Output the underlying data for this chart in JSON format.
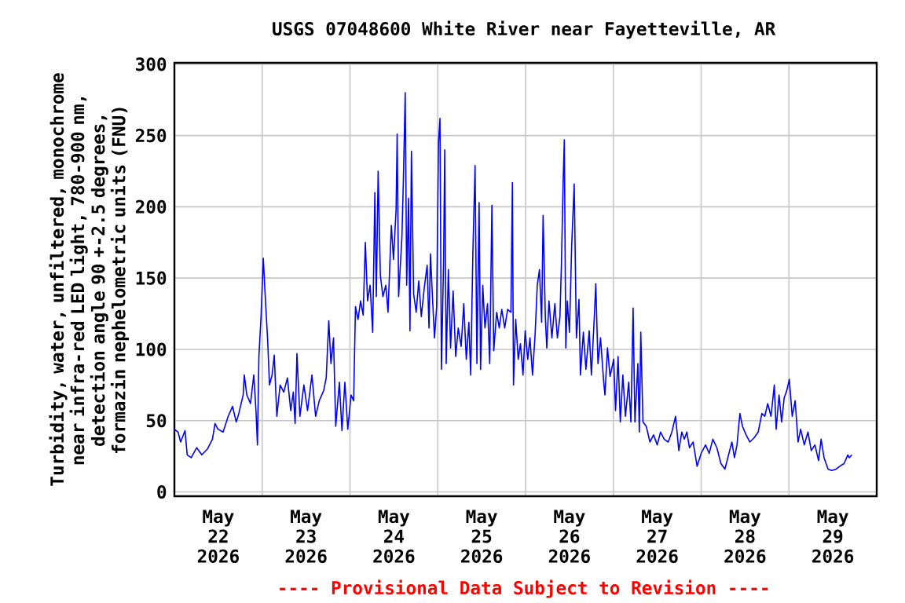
{
  "chart_data": {
    "type": "line",
    "title": "USGS 07048600 White River near Fayetteville, AR",
    "ylabel": "Turbidity, water, unfiltered, monochrome near infra-red LED light, 780-900 nm, detection angle 90 +-2.5 degrees, formazin nephelometric units (FNU)",
    "annotations": [
      "---- Provisional Data Subject to Revision ----"
    ],
    "xlim": [
      "2026-05-22T00:00",
      "2026-05-30T00:00"
    ],
    "xticks": [
      {
        "value": "2026-05-22T12:00",
        "label": "May 22 2026"
      },
      {
        "value": "2026-05-23T12:00",
        "label": "May 23 2026"
      },
      {
        "value": "2026-05-24T12:00",
        "label": "May 24 2026"
      },
      {
        "value": "2026-05-25T12:00",
        "label": "May 25 2026"
      },
      {
        "value": "2026-05-26T12:00",
        "label": "May 26 2026"
      },
      {
        "value": "2026-05-27T12:00",
        "label": "May 27 2026"
      },
      {
        "value": "2026-05-28T12:00",
        "label": "May 28 2026"
      },
      {
        "value": "2026-05-29T12:00",
        "label": "May 29 2026"
      },
      {
        "value": "2026-05-23T00:00",
        "label": null
      },
      {
        "value": "2026-05-24T00:00",
        "label": null
      },
      {
        "value": "2026-05-25T00:00",
        "label": null
      },
      {
        "value": "2026-05-26T00:00",
        "label": null
      },
      {
        "value": "2026-05-27T00:00",
        "label": null
      },
      {
        "value": "2026-05-28T00:00",
        "label": null
      },
      {
        "value": "2026-05-29T00:00",
        "label": null
      }
    ],
    "ylim": [
      -3,
      301
    ],
    "yticks": [
      0,
      50,
      100,
      150,
      200,
      250,
      300
    ],
    "grid": true,
    "line_style": "solid",
    "series": [
      {
        "color": "#0000ff",
        "x": [
          "2026-05-22T00:00",
          "2026-05-22T01:00",
          "2026-05-22T01:42",
          "2026-05-22T02:54",
          "2026-05-22T03:30",
          "2026-05-22T04:36",
          "2026-05-22T06:06",
          "2026-05-22T07:30",
          "2026-05-22T09:00",
          "2026-05-22T10:24",
          "2026-05-22T11:06",
          "2026-05-22T11:54",
          "2026-05-22T13:18",
          "2026-05-22T14:42",
          "2026-05-22T15:54",
          "2026-05-22T16:54",
          "2026-05-22T17:36",
          "2026-05-22T18:48",
          "2026-05-22T19:06",
          "2026-05-22T19:48",
          "2026-05-22T20:48",
          "2026-05-22T21:42",
          "2026-05-22T22:18",
          "2026-05-22T22:42",
          "2026-05-22T23:06",
          "2026-05-22T23:42",
          "2026-05-23T00:18",
          "2026-05-23T00:54",
          "2026-05-23T01:30",
          "2026-05-23T02:00",
          "2026-05-23T02:42",
          "2026-05-23T03:18",
          "2026-05-23T04:00",
          "2026-05-23T04:54",
          "2026-05-23T05:54",
          "2026-05-23T06:54",
          "2026-05-23T07:48",
          "2026-05-23T08:30",
          "2026-05-23T09:00",
          "2026-05-23T09:30",
          "2026-05-23T10:18",
          "2026-05-23T11:24",
          "2026-05-23T12:24",
          "2026-05-23T13:36",
          "2026-05-23T14:36",
          "2026-05-23T15:36",
          "2026-05-23T16:48",
          "2026-05-23T17:30",
          "2026-05-23T18:12",
          "2026-05-23T18:48",
          "2026-05-23T19:30",
          "2026-05-23T20:06",
          "2026-05-23T21:06",
          "2026-05-23T21:48",
          "2026-05-23T22:36",
          "2026-05-23T23:24",
          "2026-05-24T00:18",
          "2026-05-24T01:00",
          "2026-05-24T01:30",
          "2026-05-24T02:12",
          "2026-05-24T02:54",
          "2026-05-24T03:36",
          "2026-05-24T04:12",
          "2026-05-24T04:48",
          "2026-05-24T05:30",
          "2026-05-24T06:12",
          "2026-05-24T06:48",
          "2026-05-24T07:12",
          "2026-05-24T07:42",
          "2026-05-24T08:18",
          "2026-05-24T09:00",
          "2026-05-24T09:48",
          "2026-05-24T10:24",
          "2026-05-24T11:18",
          "2026-05-24T11:54",
          "2026-05-24T12:36",
          "2026-05-24T12:54",
          "2026-05-24T13:18",
          "2026-05-24T14:12",
          "2026-05-24T14:36",
          "2026-05-24T15:06",
          "2026-05-24T15:30",
          "2026-05-24T16:00",
          "2026-05-24T16:24",
          "2026-05-24T16:48",
          "2026-05-24T17:24",
          "2026-05-24T18:06",
          "2026-05-24T18:48",
          "2026-05-24T19:30",
          "2026-05-24T20:18",
          "2026-05-24T21:06",
          "2026-05-24T21:36",
          "2026-05-24T22:00",
          "2026-05-24T22:36",
          "2026-05-24T23:06",
          "2026-05-24T23:42",
          "2026-05-25T00:12",
          "2026-05-25T00:36",
          "2026-05-25T01:00",
          "2026-05-25T01:36",
          "2026-05-25T01:54",
          "2026-05-25T02:18",
          "2026-05-25T02:54",
          "2026-05-25T03:30",
          "2026-05-25T04:12",
          "2026-05-25T04:54",
          "2026-05-25T05:36",
          "2026-05-25T06:24",
          "2026-05-25T07:06",
          "2026-05-25T07:48",
          "2026-05-25T08:30",
          "2026-05-25T09:00",
          "2026-05-25T09:36",
          "2026-05-25T10:12",
          "2026-05-25T10:42",
          "2026-05-25T11:18",
          "2026-05-25T11:42",
          "2026-05-25T12:18",
          "2026-05-25T12:54",
          "2026-05-25T13:36",
          "2026-05-25T14:12",
          "2026-05-25T14:48",
          "2026-05-25T15:18",
          "2026-05-25T16:06",
          "2026-05-25T16:48",
          "2026-05-25T17:30",
          "2026-05-25T18:18",
          "2026-05-25T19:06",
          "2026-05-25T20:00",
          "2026-05-25T20:24",
          "2026-05-25T20:42",
          "2026-05-25T21:18",
          "2026-05-25T22:00",
          "2026-05-25T22:36",
          "2026-05-25T23:18",
          "2026-05-25T23:54",
          "2026-05-26T00:36",
          "2026-05-26T01:12",
          "2026-05-26T01:54",
          "2026-05-26T02:36",
          "2026-05-26T03:12",
          "2026-05-26T03:48",
          "2026-05-26T04:24",
          "2026-05-26T04:48",
          "2026-05-26T05:24",
          "2026-05-26T05:48",
          "2026-05-26T06:24",
          "2026-05-26T07:12",
          "2026-05-26T08:00",
          "2026-05-26T08:42",
          "2026-05-26T09:24",
          "2026-05-26T09:48",
          "2026-05-26T10:18",
          "2026-05-26T10:36",
          "2026-05-26T11:00",
          "2026-05-26T11:24",
          "2026-05-26T12:00",
          "2026-05-26T12:36",
          "2026-05-26T13:18",
          "2026-05-26T13:54",
          "2026-05-26T14:36",
          "2026-05-26T15:00",
          "2026-05-26T15:48",
          "2026-05-26T16:30",
          "2026-05-26T17:24",
          "2026-05-26T18:00",
          "2026-05-26T18:48",
          "2026-05-26T19:12",
          "2026-05-26T19:48",
          "2026-05-26T20:30",
          "2026-05-26T21:18",
          "2026-05-26T21:42",
          "2026-05-26T22:24",
          "2026-05-26T23:06",
          "2026-05-27T00:06",
          "2026-05-27T00:36",
          "2026-05-27T01:18",
          "2026-05-27T01:54",
          "2026-05-27T02:36",
          "2026-05-27T03:18",
          "2026-05-27T04:12",
          "2026-05-27T04:48",
          "2026-05-27T05:24",
          "2026-05-27T05:54",
          "2026-05-27T06:42",
          "2026-05-27T07:06",
          "2026-05-27T07:30",
          "2026-05-27T08:06",
          "2026-05-27T09:00",
          "2026-05-27T10:00",
          "2026-05-27T11:00",
          "2026-05-27T12:00",
          "2026-05-27T12:54",
          "2026-05-27T13:54",
          "2026-05-27T15:00",
          "2026-05-27T16:00",
          "2026-05-27T17:00",
          "2026-05-27T17:54",
          "2026-05-27T18:42",
          "2026-05-27T19:24",
          "2026-05-27T20:06",
          "2026-05-27T20:48",
          "2026-05-27T21:48",
          "2026-05-27T22:54",
          "2026-05-28T00:00",
          "2026-05-28T01:12",
          "2026-05-28T02:12",
          "2026-05-28T03:12",
          "2026-05-28T04:18",
          "2026-05-28T05:24",
          "2026-05-28T06:30",
          "2026-05-28T07:30",
          "2026-05-28T08:24",
          "2026-05-28T09:06",
          "2026-05-28T09:48",
          "2026-05-28T10:36",
          "2026-05-28T11:18",
          "2026-05-28T12:18",
          "2026-05-28T13:18",
          "2026-05-28T14:30",
          "2026-05-28T15:36",
          "2026-05-28T16:36",
          "2026-05-28T17:24",
          "2026-05-28T18:12",
          "2026-05-28T19:06",
          "2026-05-28T20:00",
          "2026-05-28T20:30",
          "2026-05-28T21:18",
          "2026-05-28T22:00",
          "2026-05-28T22:42",
          "2026-05-28T23:24",
          "2026-05-29T00:06",
          "2026-05-29T00:54",
          "2026-05-29T01:42",
          "2026-05-29T02:30",
          "2026-05-29T03:12",
          "2026-05-29T04:12",
          "2026-05-29T05:12",
          "2026-05-29T06:06",
          "2026-05-29T07:06",
          "2026-05-29T08:06",
          "2026-05-29T08:48",
          "2026-05-29T09:36",
          "2026-05-29T10:42",
          "2026-05-29T11:42",
          "2026-05-29T12:54",
          "2026-05-29T13:54",
          "2026-05-29T15:06",
          "2026-05-29T16:06",
          "2026-05-29T16:30",
          "2026-05-29T17:12"
        ],
        "values": [
          44,
          42,
          35,
          43,
          26,
          24,
          31,
          26,
          30,
          37,
          48,
          44,
          42,
          53,
          60,
          49,
          55,
          68,
          82,
          68,
          62,
          82,
          57,
          33,
          95,
          124,
          164,
          134,
          106,
          75,
          82,
          96,
          53,
          75,
          70,
          80,
          57,
          70,
          48,
          97,
          53,
          75,
          57,
          82,
          53,
          64,
          71,
          80,
          120,
          90,
          108,
          46,
          77,
          43,
          77,
          44,
          68,
          64,
          130,
          121,
          134,
          124,
          175,
          134,
          145,
          112,
          210,
          137,
          225,
          152,
          137,
          145,
          126,
          187,
          163,
          198,
          251,
          137,
          179,
          219,
          280,
          145,
          206,
          113,
          239,
          139,
          126,
          148,
          123,
          143,
          159,
          115,
          167,
          134,
          108,
          130,
          245,
          262,
          86,
          163,
          240,
          90,
          156,
          101,
          141,
          95,
          115,
          102,
          132,
          93,
          119,
          82,
          168,
          229,
          90,
          203,
          86,
          145,
          115,
          132,
          90,
          201,
          99,
          126,
          115,
          128,
          115,
          128,
          126,
          217,
          75,
          121,
          93,
          104,
          82,
          113,
          93,
          108,
          82,
          110,
          145,
          156,
          119,
          194,
          123,
          101,
          134,
          108,
          132,
          108,
          123,
          159,
          220,
          247,
          101,
          134,
          112,
          172,
          216,
          108,
          135,
          82,
          112,
          86,
          113,
          82,
          123,
          146,
          90,
          108,
          79,
          68,
          101,
          81,
          93,
          57,
          95,
          49,
          82,
          53,
          77,
          49,
          129,
          49,
          90,
          42,
          112,
          49,
          46,
          35,
          40,
          33,
          42,
          37,
          35,
          42,
          53,
          29,
          42,
          37,
          42,
          31,
          35,
          18,
          27,
          33,
          27,
          37,
          31,
          20,
          16,
          26,
          35,
          24,
          33,
          55,
          46,
          40,
          35,
          38,
          42,
          55,
          53,
          62,
          53,
          75,
          44,
          68,
          49,
          66,
          71,
          79,
          53,
          64,
          35,
          44,
          33,
          42,
          29,
          33,
          22,
          37,
          24,
          16,
          15,
          16,
          18,
          20,
          26,
          24,
          26
        ]
      }
    ]
  }
}
